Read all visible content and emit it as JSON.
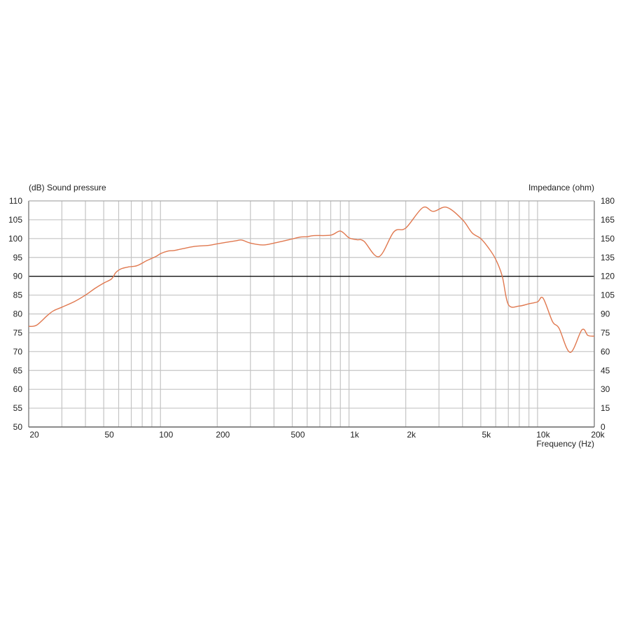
{
  "chart_data": {
    "type": "line",
    "left_axis_label": "(dB)  Sound pressure",
    "right_axis_label": "Impedance  (ohm)",
    "xlabel": "Frequency  (Hz)",
    "x_scale": "log",
    "xlim": [
      20,
      20000
    ],
    "ylim": [
      50,
      110
    ],
    "y2lim": [
      0,
      180
    ],
    "grid": true,
    "reference_line_db": 90,
    "x_ticks": [
      20,
      50,
      100,
      200,
      500,
      1000,
      2000,
      5000,
      10000,
      20000
    ],
    "x_tick_labels": [
      "20",
      "50",
      "100",
      "200",
      "500",
      "1k",
      "2k",
      "5k",
      "10k",
      "20k"
    ],
    "y_ticks": [
      110,
      105,
      100,
      95,
      90,
      85,
      80,
      75,
      70,
      65,
      60,
      55,
      50
    ],
    "y2_ticks": [
      180,
      165,
      150,
      135,
      120,
      105,
      90,
      75,
      60,
      45,
      30,
      15,
      0
    ],
    "series": [
      {
        "color": "#e0784f",
        "x": [
          20,
          22,
          25,
          27,
          30,
          35,
          40,
          45,
          50,
          55,
          58,
          62,
          68,
          75,
          85,
          95,
          100,
          110,
          120,
          150,
          180,
          200,
          250,
          270,
          300,
          350,
          400,
          500,
          550,
          600,
          650,
          800,
          900,
          1000,
          1100,
          1200,
          1440,
          1730,
          2000,
          2460,
          2800,
          3300,
          4000,
          4500,
          5000,
          5500,
          6000,
          6500,
          7000,
          8000,
          9000,
          10000,
          10700,
          12000,
          13000,
          14900,
          17200,
          18500,
          20000
        ],
        "y": [
          76.7,
          77,
          79.5,
          80.8,
          81.8,
          83.3,
          85,
          86.8,
          88.2,
          89.3,
          91,
          92,
          92.5,
          92.8,
          94.2,
          95.3,
          96,
          96.7,
          96.9,
          97.9,
          98.2,
          98.6,
          99.4,
          99.6,
          98.8,
          98.3,
          98.8,
          99.9,
          100.4,
          100.5,
          100.8,
          100.9,
          102,
          100.2,
          99.7,
          99.3,
          95.2,
          101.8,
          102.8,
          108.2,
          107.2,
          108.3,
          105,
          101.5,
          100,
          97.5,
          94.5,
          90,
          82.5,
          82.1,
          82.7,
          83.2,
          84.2,
          78,
          76.2,
          69.8,
          75.8,
          74.3,
          74.1
        ]
      }
    ]
  }
}
